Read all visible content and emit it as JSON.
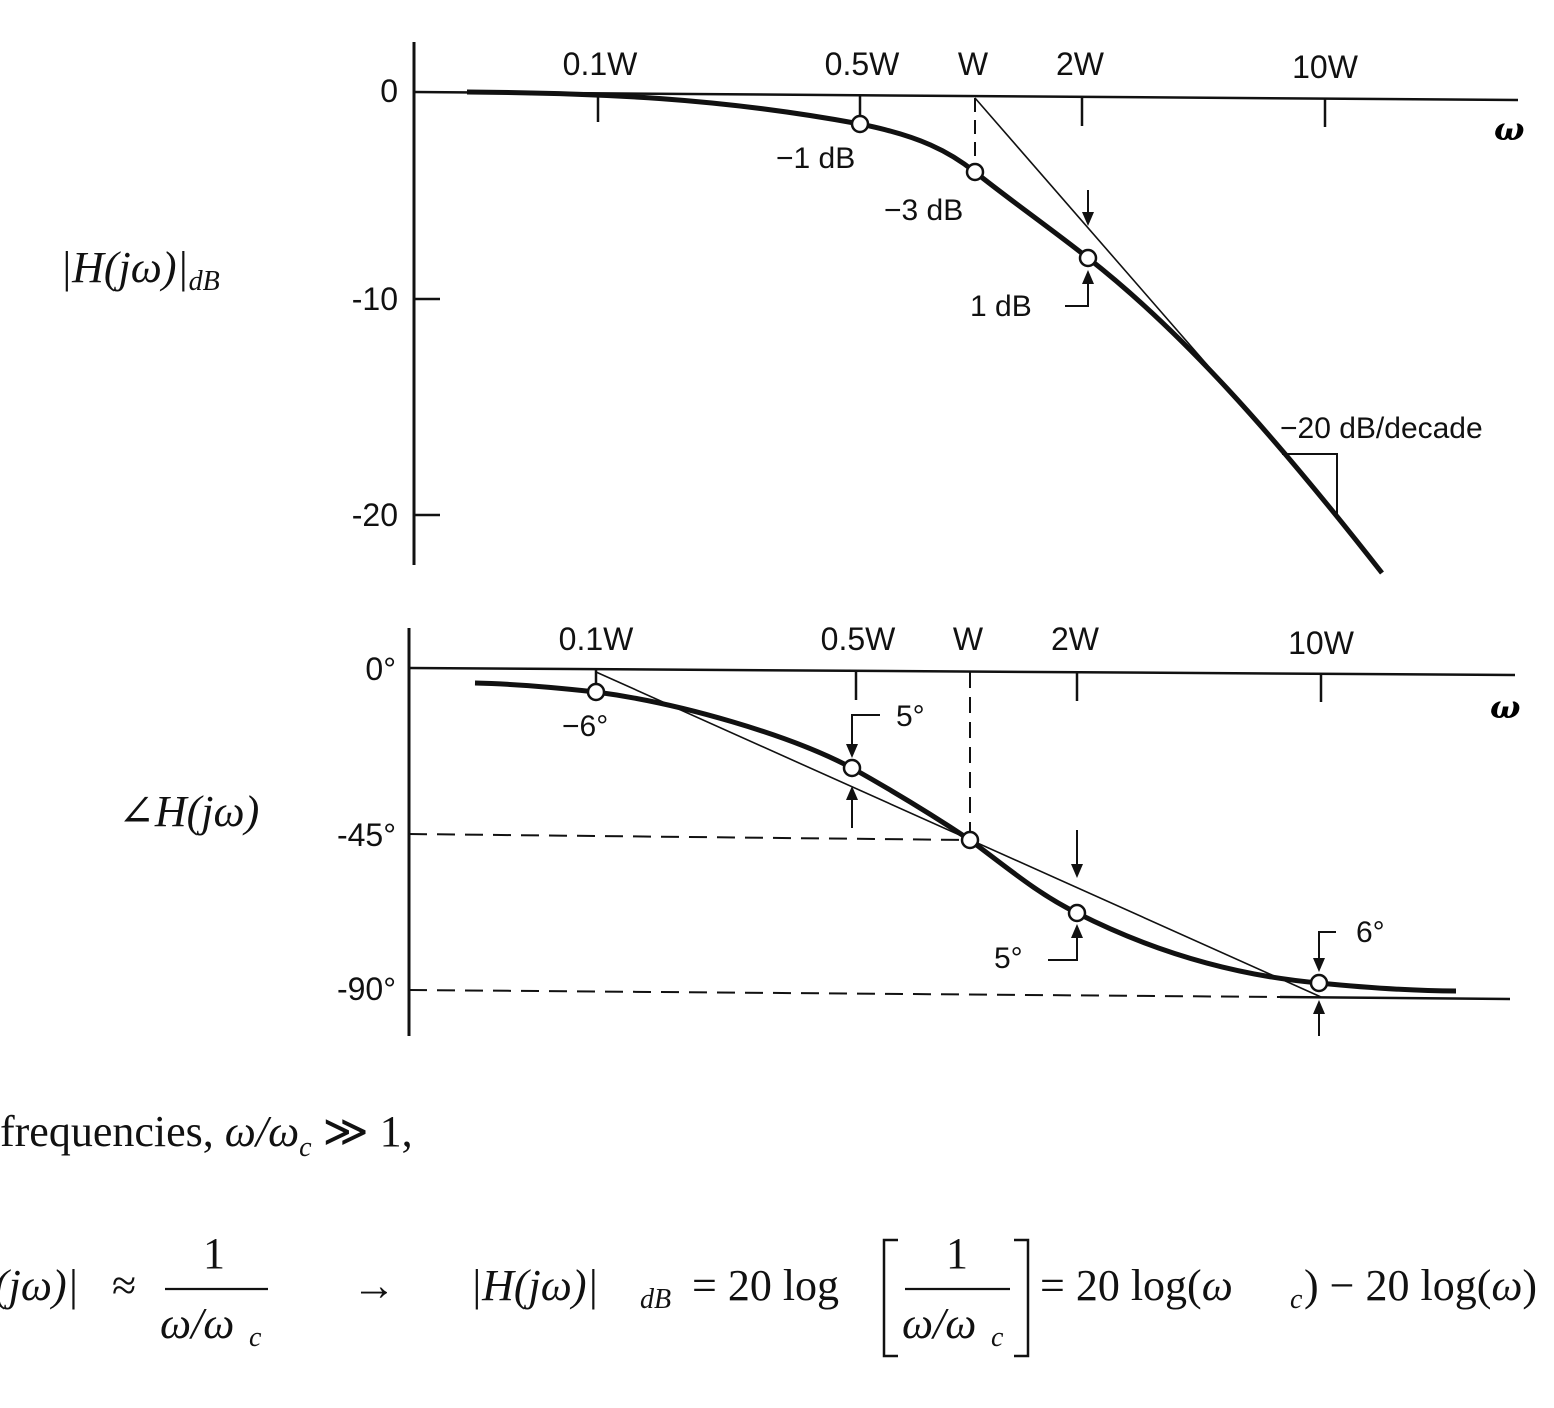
{
  "chart_data": [
    {
      "type": "line",
      "ylabel": "|H(jω)|dB",
      "xlabel": "ω",
      "x_scale": "log",
      "x_tick_labels": [
        "0.1W",
        "0.5W",
        "W",
        "2W",
        "10W"
      ],
      "x_tick_values": [
        0.1,
        0.5,
        1,
        2,
        10
      ],
      "y_tick_labels": [
        "0",
        "-10",
        "-20"
      ],
      "y_tick_values": [
        0,
        -10,
        -20
      ],
      "ylim": [
        -22.5,
        2
      ],
      "series": [
        {
          "name": "",
          "kind": "exact",
          "x": [
            0.03,
            0.05,
            0.1,
            0.2,
            0.3,
            0.5,
            0.7,
            1,
            1.5,
            2,
            3,
            5,
            7,
            10,
            15
          ],
          "values": [
            0.0,
            -0.01,
            -0.04,
            -0.17,
            -0.37,
            -0.97,
            -1.73,
            -3.01,
            -5.12,
            -6.99,
            -10.0,
            -14.15,
            -16.99,
            -20.04,
            -23.52
          ]
        },
        {
          "name": "",
          "kind": "asymptote",
          "x": [
            0.03,
            1,
            10
          ],
          "values": [
            0,
            0,
            -20
          ]
        }
      ],
      "markers": [
        {
          "x": 0.5,
          "y": -1.5
        },
        {
          "x": 1,
          "y": -4.0
        },
        {
          "x": 2,
          "y": -8.0
        }
      ],
      "annotations": [
        "−1 dB",
        "−3 dB",
        "1 dB",
        "−20 dB/decade"
      ]
    },
    {
      "type": "line",
      "ylabel": "∠H(jω)",
      "xlabel": "ω",
      "x_scale": "log",
      "x_tick_labels": [
        "0.1W",
        "0.5W",
        "W",
        "2W",
        "10W"
      ],
      "x_tick_values": [
        0.1,
        0.5,
        1,
        2,
        10
      ],
      "y_tick_labels": [
        "0°",
        "-45°",
        "-90°"
      ],
      "y_tick_values": [
        0,
        -45,
        -90
      ],
      "ylim": [
        -100,
        8
      ],
      "series": [
        {
          "name": "",
          "kind": "exact",
          "x": [
            0.05,
            0.1,
            0.2,
            0.3,
            0.5,
            0.7,
            1,
            1.5,
            2,
            3,
            5,
            7,
            10,
            15,
            20
          ],
          "values": [
            -2.9,
            -5.7,
            -11.3,
            -16.7,
            -26.6,
            -35.0,
            -45.0,
            -56.3,
            -63.4,
            -71.6,
            -78.7,
            -81.9,
            -84.3,
            -86.2,
            -87.1
          ]
        },
        {
          "name": "",
          "kind": "asymptote",
          "x": [
            0.1,
            10
          ],
          "values": [
            0,
            -90
          ]
        }
      ],
      "markers": [
        {
          "x": 0.1,
          "y": -6
        },
        {
          "x": 0.5,
          "y": -26.6
        },
        {
          "x": 1,
          "y": -45
        },
        {
          "x": 2,
          "y": -63.4
        },
        {
          "x": 10,
          "y": -84
        }
      ],
      "annotations": [
        "−6°",
        "5°",
        "5°",
        "6°"
      ]
    }
  ],
  "text": {
    "line1_prefix": "frequencies, ",
    "line1_math": "ω/ω",
    "line1_sub": "c",
    "line1_suffix": " ≫ 1,"
  }
}
